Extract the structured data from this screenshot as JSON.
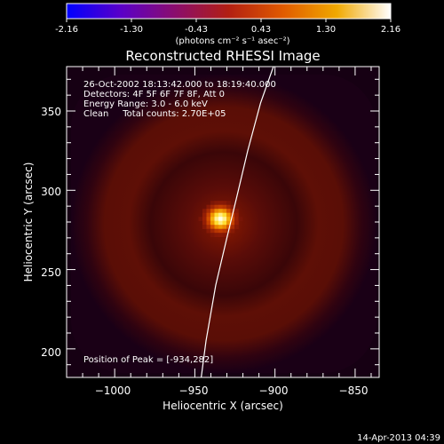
{
  "colorbar": {
    "ticks": [
      "-2.16",
      "-1.30",
      "-0.43",
      "0.43",
      "1.30",
      "2.16"
    ],
    "units": "(photons cm⁻² s⁻¹ asec⁻²)",
    "colors": [
      "#0000ff",
      "#5a00c8",
      "#8a0d6e",
      "#b21f12",
      "#e05a00",
      "#f0a800",
      "#ffffff"
    ]
  },
  "chart_data": {
    "type": "heatmap",
    "title": "Reconstructed RHESSI Image",
    "xlabel": "Heliocentric X (arcsec)",
    "ylabel": "Heliocentric Y (arcsec)",
    "xlim": [
      -1030,
      -835
    ],
    "ylim": [
      182,
      378
    ],
    "x_ticks": [
      -1000,
      -950,
      -900,
      -850
    ],
    "x_tick_labels": [
      "−1000",
      "−950",
      "−900",
      "−850"
    ],
    "y_ticks": [
      200,
      250,
      300,
      350
    ],
    "y_tick_labels": [
      "200",
      "250",
      "300",
      "350"
    ],
    "peak": {
      "x": -934,
      "y": 282
    },
    "limb_curve": [
      [
        -946,
        182
      ],
      [
        -943,
        205
      ],
      [
        -937,
        240
      ],
      [
        -930,
        270
      ],
      [
        -924,
        295
      ],
      [
        -917,
        325
      ],
      [
        -909,
        355
      ],
      [
        -901,
        378
      ]
    ],
    "annotations": [
      "26-Oct-2002 18:13:42.000 to 18:19:40.000",
      "Detectors: 4F 5F 6F 7F 8F, Att 0",
      "Energy Range: 3.0 - 6.0 keV",
      "Clean     Total counts: 2.70E+05"
    ],
    "peak_label": "Position of Peak = [-934,282]"
  },
  "footer": {
    "timestamp": "14-Apr-2013 04:39"
  }
}
